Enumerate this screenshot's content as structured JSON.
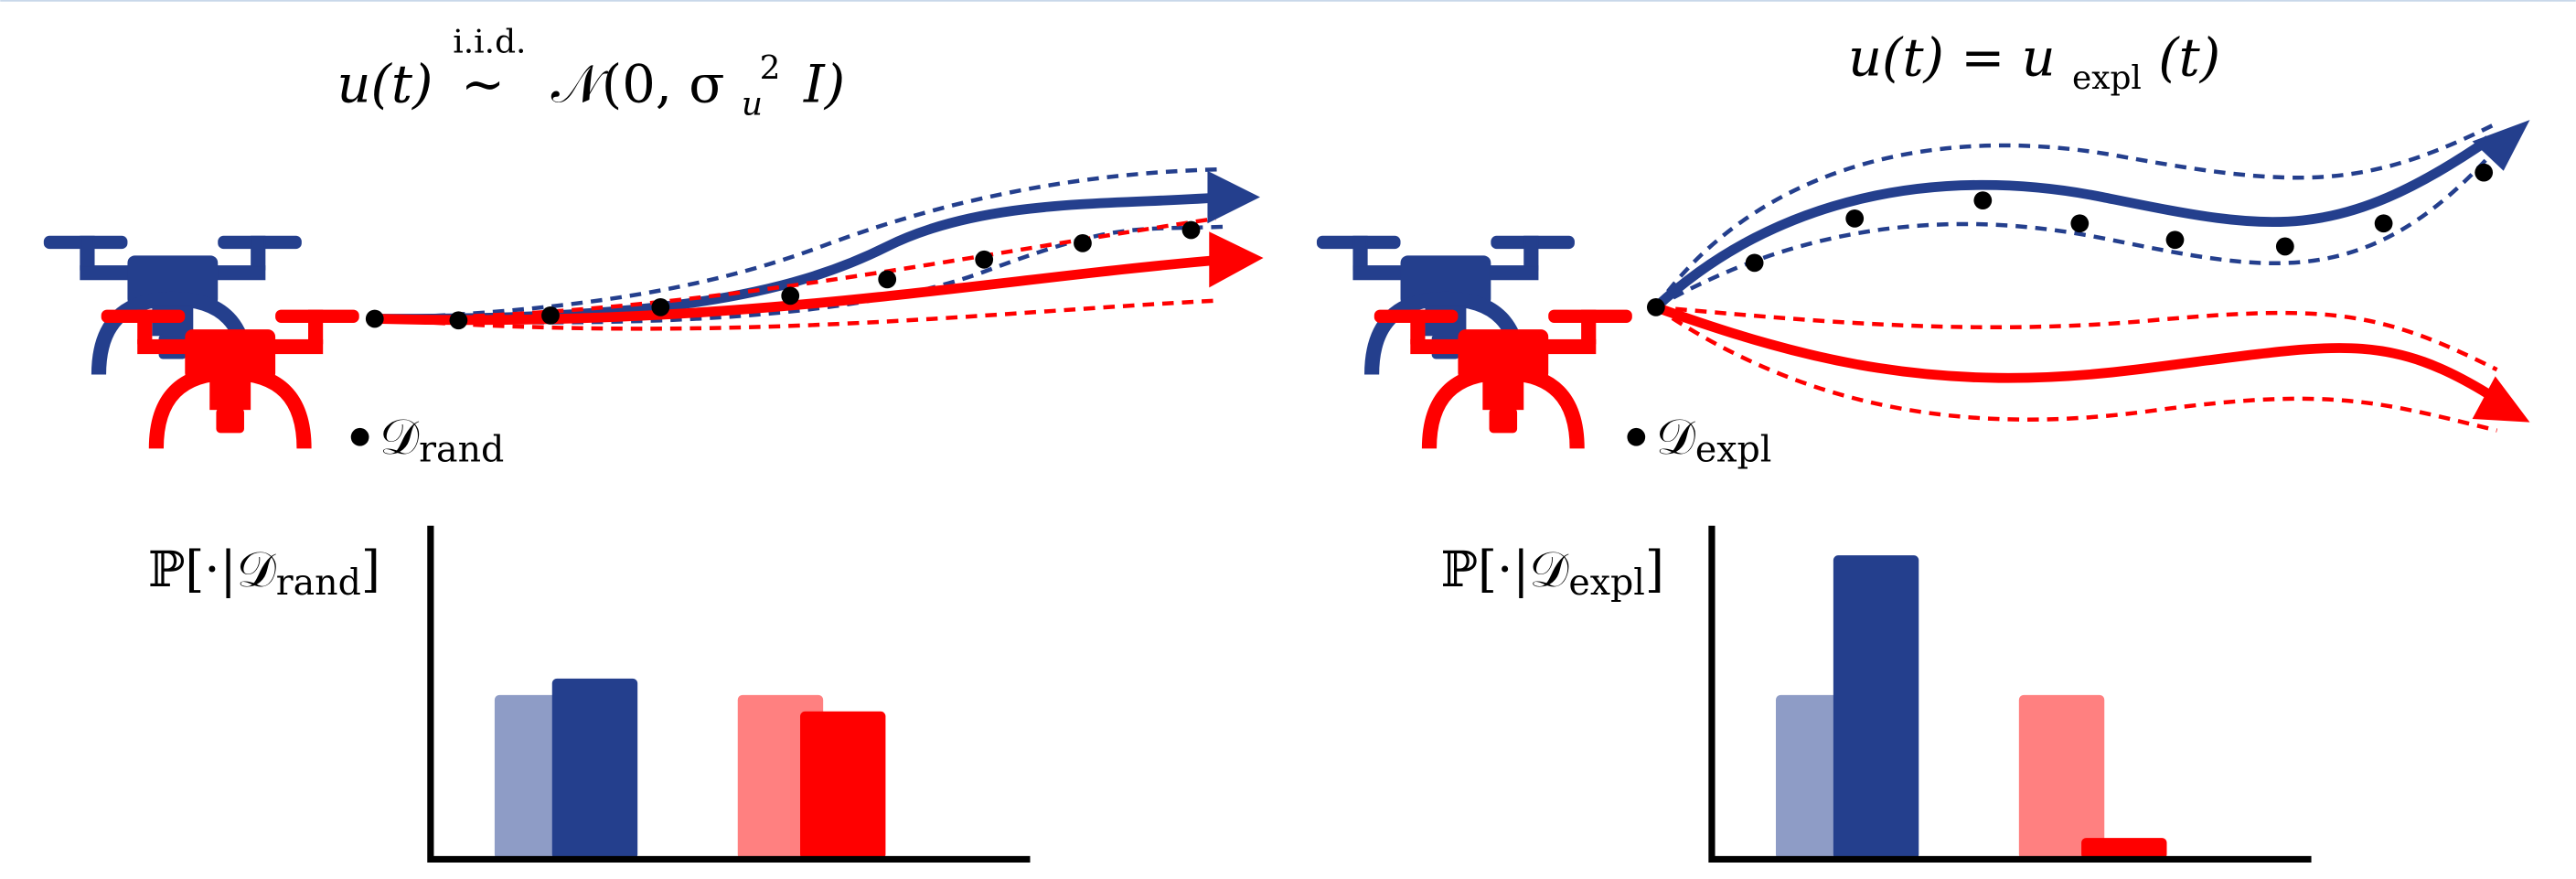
{
  "panels": [
    {
      "formula": {
        "lhs": "u(t)",
        "over": "i.i.d.",
        "rel": "∼",
        "rhs": "𝒩(0, σ",
        "sub": "u",
        "sup": "2",
        "tail": "I)"
      },
      "dataset": {
        "symbol": "𝒟",
        "sub": "rand"
      },
      "ylabel": {
        "pre": "ℙ[·|𝒟",
        "sub": "rand",
        "post": "]"
      },
      "bars": [
        {
          "color": "#8e9cc6",
          "value": 100
        },
        {
          "color": "#243f8d",
          "value": 110
        },
        {
          "color": "#ff8080",
          "value": 100
        },
        {
          "color": "#ff0000",
          "value": 90
        }
      ]
    },
    {
      "formula": {
        "lhs": "u(t) = u",
        "sub": "expl",
        "tail": "(t)"
      },
      "dataset": {
        "symbol": "𝒟",
        "sub": "expl"
      },
      "ylabel": {
        "pre": "ℙ[·|𝒟",
        "sub": "expl",
        "post": "]"
      },
      "bars": [
        {
          "color": "#8e9cc6",
          "value": 100
        },
        {
          "color": "#243f8d",
          "value": 185
        },
        {
          "color": "#ff8080",
          "value": 100
        },
        {
          "color": "#ff0000",
          "value": 13
        }
      ]
    }
  ]
}
